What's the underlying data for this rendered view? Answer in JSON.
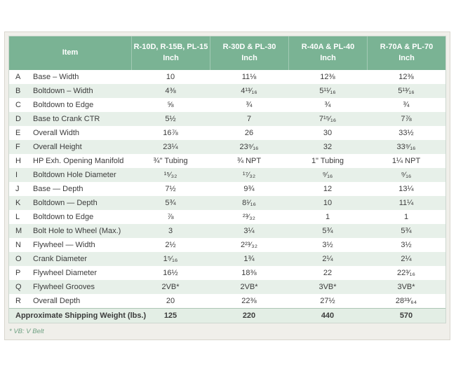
{
  "table": {
    "header": {
      "item_label": "Item",
      "columns": [
        {
          "models": "R-10D, R-15B, PL-15",
          "unit": "Inch"
        },
        {
          "models": "R-30D & PL-30",
          "unit": "Inch"
        },
        {
          "models": "R-40A & PL-40",
          "unit": "Inch"
        },
        {
          "models": "R-70A & PL-70",
          "unit": "Inch"
        }
      ]
    },
    "rows": [
      {
        "letter": "A",
        "item": "Base – Width",
        "values": [
          "10",
          "11⅛",
          "12⅜",
          "12⅜"
        ]
      },
      {
        "letter": "B",
        "item": "Boltdown – Width",
        "values": [
          "4⅜",
          "4¹³⁄₁₆",
          "5¹¹⁄₁₆",
          "5¹³⁄₁₆"
        ]
      },
      {
        "letter": "C",
        "item": "Boltdown to Edge",
        "values": [
          "⅝",
          "¾",
          "¾",
          "¾"
        ]
      },
      {
        "letter": "D",
        "item": "Base to Crank CTR",
        "values": [
          "5½",
          "7",
          "7¹⁵⁄₁₆",
          "7⅞"
        ]
      },
      {
        "letter": "E",
        "item": "Overall Width",
        "values": [
          "16⅞",
          "26",
          "30",
          "33½"
        ]
      },
      {
        "letter": "F",
        "item": "Overall Height",
        "values": [
          "23¼",
          "23⁹⁄₁₆",
          "32",
          "33⁹⁄₁₆"
        ]
      },
      {
        "letter": "H",
        "item": "HP Exh. Opening Manifold",
        "values": [
          "¾\" Tubing",
          "¾ NPT",
          "1\" Tubing",
          "1¼ NPT"
        ]
      },
      {
        "letter": "I",
        "item": "Boltdown Hole Diameter",
        "values": [
          "¹⁵⁄₃₂",
          "¹⁷⁄₃₂",
          "⁹⁄₁₆",
          "⁹⁄₁₆"
        ]
      },
      {
        "letter": "J",
        "item": "Base — Depth",
        "values": [
          "7½",
          "9¾",
          "12",
          "13¼"
        ]
      },
      {
        "letter": "K",
        "item": "Boltdown — Depth",
        "values": [
          "5¾",
          "8¹⁄₁₆",
          "10",
          "11¼"
        ]
      },
      {
        "letter": "L",
        "item": "Boltdown to Edge",
        "values": [
          "⅞",
          "²³⁄₃₂",
          "1",
          "1"
        ]
      },
      {
        "letter": "M",
        "item": "Bolt Hole to Wheel (Max.)",
        "values": [
          "3",
          "3¼",
          "5¾",
          "5¾"
        ]
      },
      {
        "letter": "N",
        "item": "Flywheel — Width",
        "values": [
          "2½",
          "2²³⁄₃₂",
          "3½",
          "3½"
        ]
      },
      {
        "letter": "O",
        "item": "Crank Diameter",
        "values": [
          "1⁵⁄₁₆",
          "1¾",
          "2¼",
          "2¼"
        ]
      },
      {
        "letter": "P",
        "item": "Flywheel Diameter",
        "values": [
          "16½",
          "18⅜",
          "22",
          "22³⁄₁₆"
        ]
      },
      {
        "letter": "Q",
        "item": "Flywheel Grooves",
        "values": [
          "2VB*",
          "2VB*",
          "3VB*",
          "3VB*"
        ]
      },
      {
        "letter": "R",
        "item": "Overall Depth",
        "values": [
          "20",
          "22⅜",
          "27½",
          "28³³⁄₆₄"
        ]
      }
    ],
    "summary_row": {
      "label": "Approximate Shipping Weight (lbs.)",
      "values": [
        "125",
        "220",
        "440",
        "570"
      ]
    },
    "footnote": "* VB: V Belt"
  },
  "colors": {
    "header_green": "#7ab394",
    "alt_row_green": "#e7f0e9",
    "summary_row_green": "#e3eee5",
    "card_background": "#f0efea",
    "footnote_green": "#6fa183"
  }
}
